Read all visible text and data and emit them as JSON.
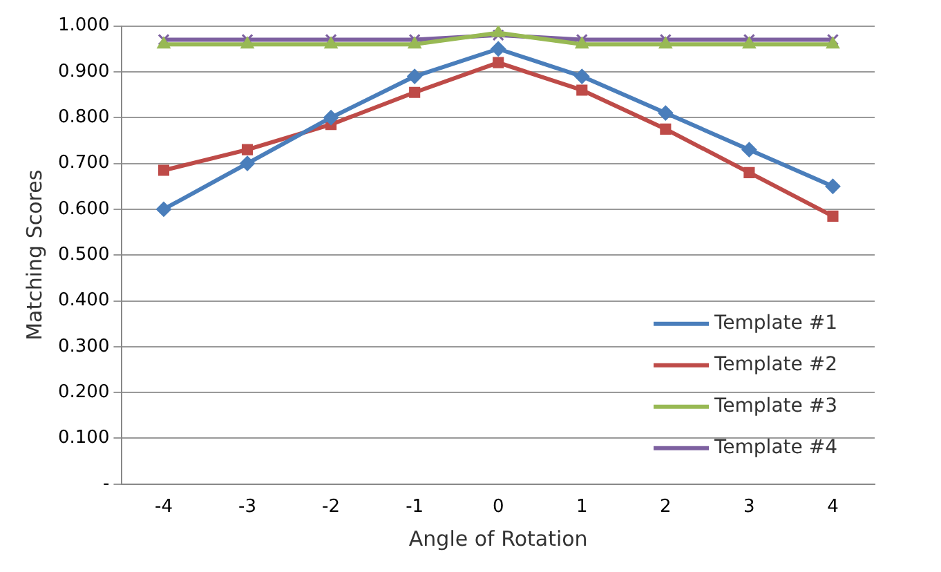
{
  "chart_data": {
    "type": "line",
    "xlabel": "Angle of Rotation",
    "ylabel": "Matching Scores",
    "categories": [
      "-4",
      "-3",
      "-2",
      "-1",
      "0",
      "1",
      "2",
      "3",
      "4"
    ],
    "series": [
      {
        "name": "Template #1",
        "color": "#4a7ebb",
        "marker": "diamond",
        "values": [
          0.6,
          0.7,
          0.8,
          0.89,
          0.95,
          0.89,
          0.81,
          0.73,
          0.65
        ]
      },
      {
        "name": "Template #2",
        "color": "#be4b48",
        "marker": "square",
        "values": [
          0.685,
          0.73,
          0.785,
          0.855,
          0.92,
          0.86,
          0.775,
          0.68,
          0.585
        ]
      },
      {
        "name": "Template #3",
        "color": "#98b954",
        "marker": "triangle",
        "values": [
          0.96,
          0.96,
          0.96,
          0.96,
          0.985,
          0.96,
          0.96,
          0.96,
          0.96
        ]
      },
      {
        "name": "Template #4",
        "color": "#7d60a0",
        "marker": "cross",
        "values": [
          0.97,
          0.97,
          0.97,
          0.97,
          0.98,
          0.97,
          0.97,
          0.97,
          0.97
        ]
      }
    ],
    "ylim": [
      0,
      1
    ],
    "yticks": [
      {
        "value": 0,
        "label": "-"
      },
      {
        "value": 0.1,
        "label": "0.100"
      },
      {
        "value": 0.2,
        "label": "0.200"
      },
      {
        "value": 0.3,
        "label": "0.300"
      },
      {
        "value": 0.4,
        "label": "0.400"
      },
      {
        "value": 0.5,
        "label": "0.500"
      },
      {
        "value": 0.6,
        "label": "0.600"
      },
      {
        "value": 0.7,
        "label": "0.700"
      },
      {
        "value": 0.8,
        "label": "0.800"
      },
      {
        "value": 0.9,
        "label": "0.900"
      },
      {
        "value": 1,
        "label": "1.000"
      }
    ],
    "grid": "y",
    "legend": "bottom right"
  }
}
